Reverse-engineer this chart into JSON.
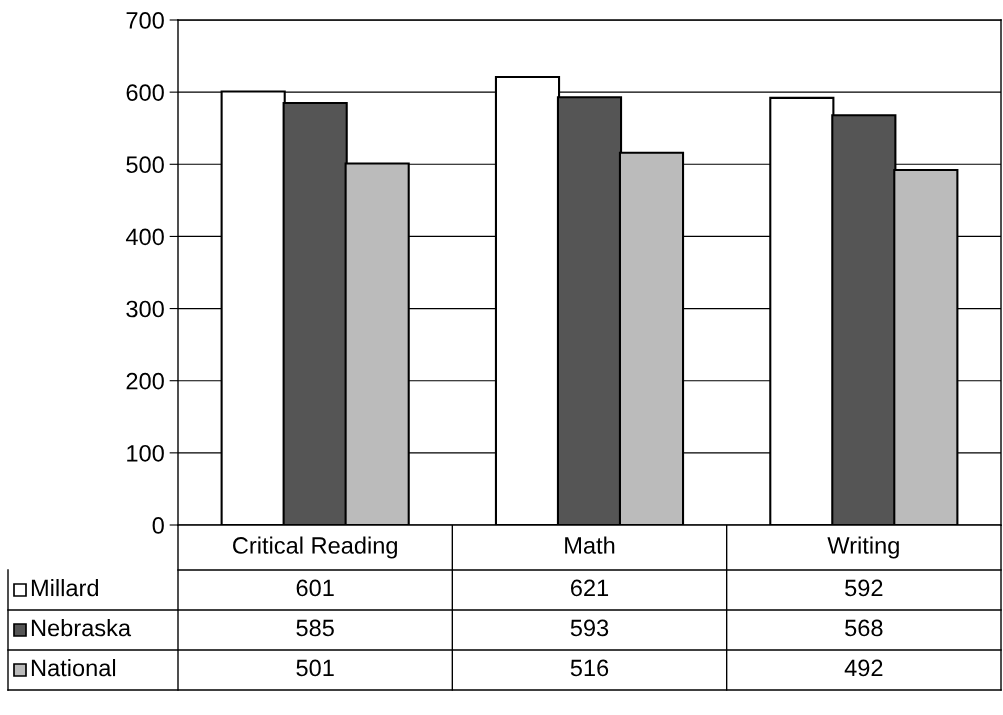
{
  "chart_data": {
    "type": "bar",
    "categories": [
      "Critical Reading",
      "Math",
      "Writing"
    ],
    "series": [
      {
        "name": "Millard",
        "color": "#ffffff",
        "values": [
          601,
          621,
          592
        ]
      },
      {
        "name": "Nebraska",
        "color": "#555555",
        "values": [
          585,
          593,
          568
        ]
      },
      {
        "name": "National",
        "color": "#bbbbbb",
        "values": [
          501,
          516,
          492
        ]
      }
    ],
    "ylim": [
      0,
      700
    ],
    "yticks": [
      0,
      100,
      200,
      300,
      400,
      500,
      600,
      700
    ],
    "grid": "y",
    "data_labels": true,
    "legend": "bottom left"
  }
}
